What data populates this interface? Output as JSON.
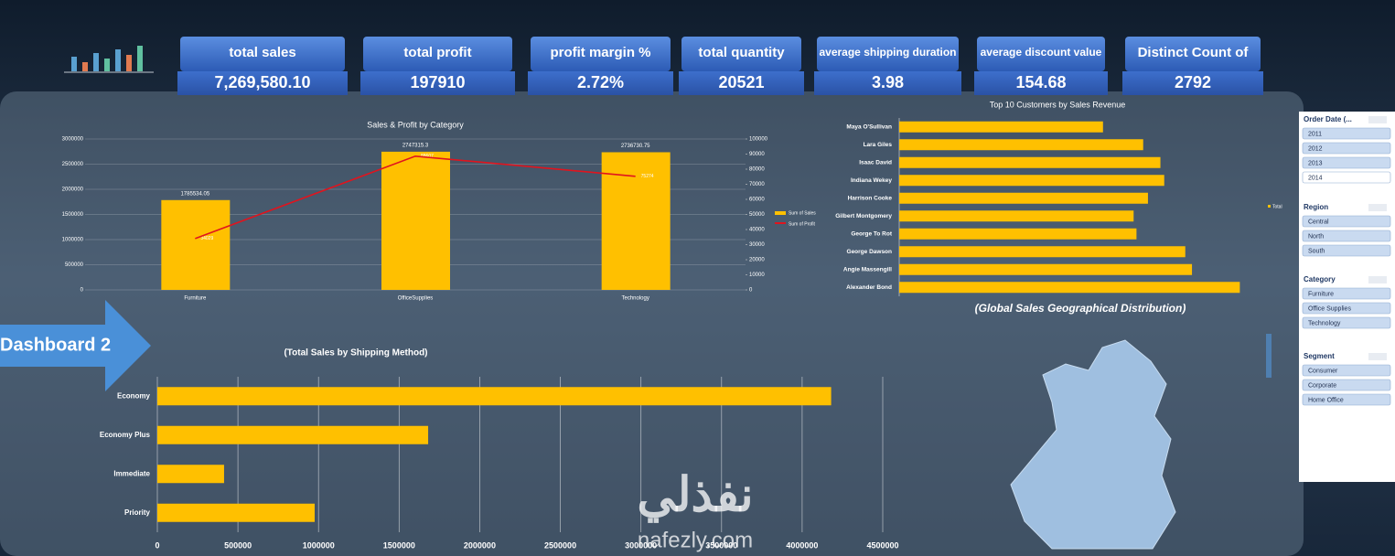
{
  "kpis": [
    {
      "label": "total sales",
      "value": "7,269,580.10"
    },
    {
      "label": "total profit",
      "value": "197910"
    },
    {
      "label": "profit margin %",
      "value": "2.72%"
    },
    {
      "label": "total quantity",
      "value": "20521"
    },
    {
      "label": "average shipping duration",
      "value": "3.98"
    },
    {
      "label": "average discount value",
      "value": "154.68"
    },
    {
      "label": "Distinct Count of",
      "value": "2792"
    }
  ],
  "chart_data": [
    {
      "type": "combo",
      "title": "Sales & Profit by Category",
      "categories": [
        "Furniture",
        "OfficeSupplies",
        "Technology"
      ],
      "series": [
        {
          "name": "Sum of Sales",
          "color": "#ffc000",
          "values": [
            1785534.05,
            2747315.3,
            2736730.75
          ]
        },
        {
          "name": "Sum of Profit",
          "color": "#e0141e",
          "axis": "y2",
          "values": [
            34029,
            88607,
            75274
          ]
        }
      ],
      "ylim": [
        0,
        3000000
      ],
      "yticks": [
        0,
        500000,
        1000000,
        1500000,
        2000000,
        2500000,
        3000000
      ],
      "y2lim": [
        0,
        100000
      ],
      "y2ticks": [
        0,
        10000,
        20000,
        30000,
        40000,
        50000,
        60000,
        70000,
        80000,
        90000,
        100000
      ],
      "grid": true
    },
    {
      "type": "hbar",
      "title": "Top 10 Customers by Sales Revenue",
      "categories": [
        "Maya O'Sullivan",
        "Lara Giles",
        "Isaac David",
        "Indiana Wekey",
        "Harrison Cooke",
        "Gilbert Montgomery",
        "George To Rot",
        "George Dawson",
        "Angie Massengill",
        "Alexander Bond"
      ],
      "series": [
        {
          "name": "Total",
          "color": "#ffc000",
          "values": [
            10650,
            12750,
            13650,
            13850,
            13000,
            12250,
            12400,
            14950,
            15300,
            17800
          ]
        }
      ],
      "xlim": [
        0,
        18500
      ]
    },
    {
      "type": "hbar",
      "title": "(Total Sales by Shipping Method)",
      "categories": [
        "Economy",
        "Economy Plus",
        "Immediate",
        "Priority"
      ],
      "series": [
        {
          "color": "#ffc000",
          "values": [
            4180000,
            1680000,
            414000,
            976000
          ]
        }
      ],
      "xlim": [
        0,
        4500000
      ],
      "xticks": [
        0,
        500000,
        1000000,
        1500000,
        2000000,
        2500000,
        3000000,
        3500000,
        4000000,
        4500000
      ],
      "grid": true
    },
    {
      "type": "map",
      "title": "(Global Sales Geographical Distribution)"
    }
  ],
  "slicers": [
    {
      "title": "Order Date (...",
      "items": [
        "2011",
        "2012",
        "2013",
        "2014"
      ]
    },
    {
      "title": "Region",
      "items": [
        "Central",
        "North",
        "South"
      ]
    },
    {
      "title": "Category",
      "items": [
        "Furniture",
        "Office Supplies",
        "Technology"
      ]
    },
    {
      "title": "Segment",
      "items": [
        "Consumer",
        "Corporate",
        "Home Office"
      ]
    }
  ],
  "navigation": {
    "label": "Dashboard 2"
  },
  "watermark": {
    "arabic": "نفذلي",
    "latin": "nafezly.com"
  }
}
